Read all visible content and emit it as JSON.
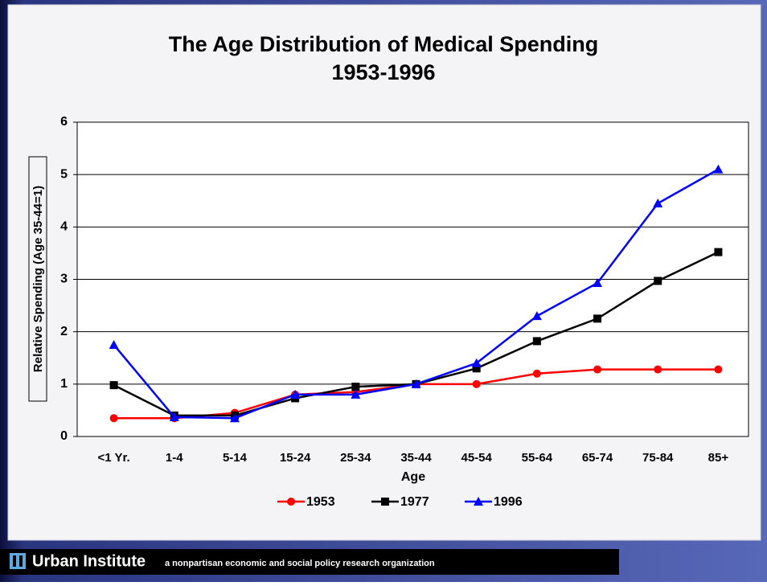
{
  "chart_data": {
    "type": "line",
    "title": [
      "The Age Distribution of Medical Spending",
      "1953-1996"
    ],
    "x_label": "Age",
    "y_label": "Relative Spending (Age 35-44=1)",
    "categories": [
      "<1 Yr.",
      "1-4",
      "5-14",
      "15-24",
      "25-34",
      "35-44",
      "45-54",
      "55-64",
      "65-74",
      "75-84",
      "85+"
    ],
    "series": [
      {
        "name": "1953",
        "color": "#ff0000",
        "marker": "circle",
        "values": [
          0.35,
          0.35,
          0.45,
          0.8,
          0.85,
          1.0,
          1.0,
          1.2,
          1.28,
          1.28,
          1.28
        ]
      },
      {
        "name": "1977",
        "color": "#000000",
        "marker": "square",
        "values": [
          0.98,
          0.4,
          0.4,
          0.73,
          0.95,
          1.0,
          1.3,
          1.82,
          2.25,
          2.97,
          3.52
        ]
      },
      {
        "name": "1996",
        "color": "#0000ff",
        "marker": "triangle",
        "values": [
          1.75,
          0.37,
          0.35,
          0.8,
          0.8,
          1.0,
          1.4,
          2.3,
          2.93,
          4.45,
          5.1
        ]
      }
    ],
    "ylim": [
      0,
      6
    ],
    "yticks": [
      0,
      1,
      2,
      3,
      4,
      5,
      6
    ],
    "grid": true,
    "legend": "bottom"
  },
  "footer": {
    "name": "Urban Institute",
    "tagline": "a nonpartisan economic and social policy research organization"
  }
}
